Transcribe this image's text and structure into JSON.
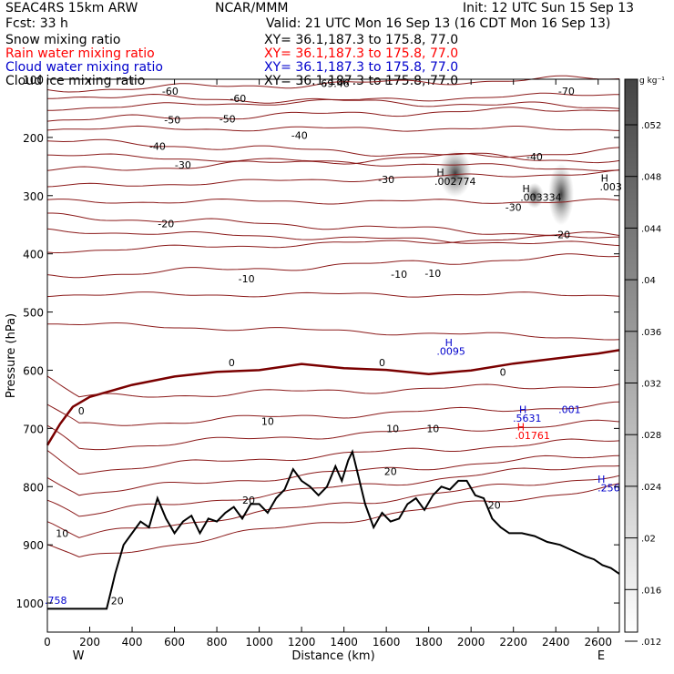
{
  "header": {
    "model": "SEAC4RS 15km ARW",
    "org": "NCAR/MMM",
    "init": "Init: 12 UTC Sun 15 Sep 13",
    "fcst": "Fcst:    33 h",
    "valid": "Valid: 21 UTC Mon 16 Sep 13 (16 CDT Mon 16 Sep 13)",
    "fields": [
      {
        "label": "Snow mixing ratio",
        "xy": "XY=  36.1,187.3 to 175.8, 77.0",
        "color": "#000000"
      },
      {
        "label": "Rain water mixing ratio",
        "xy": "XY=  36.1,187.3 to 175.8, 77.0",
        "color": "#ff0000"
      },
      {
        "label": "Cloud water mixing ratio",
        "xy": "XY=  36.1,187.3 to 175.8, 77.0",
        "color": "#0000cc"
      },
      {
        "label": "Cloud ice mixing ratio",
        "xy": "XY=  36.1,187.3 to 175.8, 77.0",
        "color": "#000000"
      }
    ]
  },
  "chart_data": {
    "type": "contour",
    "xlabel": "Distance (km)",
    "ylabel": "Pressure (hPa)",
    "xlim": [
      0,
      2700
    ],
    "ylim": [
      1050,
      100
    ],
    "x_ticks": [
      "0",
      "200",
      "400",
      "600",
      "800",
      "1000",
      "1200",
      "1400",
      "1600",
      "1800",
      "2000",
      "2200",
      "2400",
      "2600"
    ],
    "y_ticks": [
      "100",
      "200",
      "300",
      "400",
      "500",
      "600",
      "700",
      "800",
      "900",
      "1000"
    ],
    "x_end_labels": {
      "left": "W",
      "right": "E"
    },
    "colorbar": {
      "unit": "g kg⁻¹",
      "labels": [
        ".052",
        ".048",
        ".044",
        ".04",
        ".036",
        ".032",
        ".028",
        ".024",
        ".02",
        ".016",
        ".012"
      ]
    },
    "temperature_contours": {
      "color": "#8b1a1a",
      "levels": [
        -70,
        -60,
        -50,
        -40,
        -30,
        -20,
        -10,
        0,
        10,
        20
      ],
      "labels": [
        {
          "text": "-69.46",
          "x": 1350,
          "p": 107
        },
        {
          "text": "-70",
          "x": 2450,
          "p": 120
        },
        {
          "text": "-60",
          "x": 580,
          "p": 120
        },
        {
          "text": "-60",
          "x": 900,
          "p": 133
        },
        {
          "text": "-50",
          "x": 590,
          "p": 170
        },
        {
          "text": "-50",
          "x": 850,
          "p": 168
        },
        {
          "text": "-40",
          "x": 520,
          "p": 215
        },
        {
          "text": "-40",
          "x": 1190,
          "p": 196
        },
        {
          "text": "-40",
          "x": 2300,
          "p": 233
        },
        {
          "text": "-30",
          "x": 640,
          "p": 247
        },
        {
          "text": "-30",
          "x": 1600,
          "p": 272
        },
        {
          "text": "-30",
          "x": 2200,
          "p": 320
        },
        {
          "text": "-20",
          "x": 560,
          "p": 348
        },
        {
          "text": "-20",
          "x": 2430,
          "p": 367
        },
        {
          "text": "-10",
          "x": 940,
          "p": 443
        },
        {
          "text": "-10",
          "x": 1660,
          "p": 435
        },
        {
          "text": "-10",
          "x": 1820,
          "p": 433
        },
        {
          "text": "0",
          "x": 870,
          "p": 587
        },
        {
          "text": "0",
          "x": 1580,
          "p": 587
        },
        {
          "text": "0",
          "x": 2150,
          "p": 603
        },
        {
          "text": "0",
          "x": 160,
          "p": 670
        },
        {
          "text": "10",
          "x": 1040,
          "p": 688
        },
        {
          "text": "10",
          "x": 1630,
          "p": 700
        },
        {
          "text": "10",
          "x": 1820,
          "p": 700
        },
        {
          "text": "10",
          "x": 70,
          "p": 880
        },
        {
          "text": "20",
          "x": 1620,
          "p": 774
        },
        {
          "text": "20",
          "x": 950,
          "p": 823
        },
        {
          "text": "20",
          "x": 2110,
          "p": 832
        },
        {
          "text": "20",
          "x": 330,
          "p": 996
        }
      ]
    },
    "extrema": [
      {
        "text": "H",
        "x": 1855,
        "p": 260,
        "color": "#000000"
      },
      {
        "text": ".002774",
        "x": 1925,
        "p": 275,
        "color": "#000000"
      },
      {
        "text": "H",
        "x": 2260,
        "p": 288,
        "color": "#000000"
      },
      {
        "text": ".003334",
        "x": 2330,
        "p": 303,
        "color": "#000000"
      },
      {
        "text": "H",
        "x": 2630,
        "p": 270,
        "color": "#000000"
      },
      {
        "text": ".003",
        "x": 2660,
        "p": 285,
        "color": "#000000"
      },
      {
        "text": "H",
        "x": 1895,
        "p": 552,
        "color": "#0000cc"
      },
      {
        "text": ".0095",
        "x": 1905,
        "p": 567,
        "color": "#0000cc"
      },
      {
        "text": "H",
        "x": 2245,
        "p": 667,
        "color": "#0000cc"
      },
      {
        "text": ".5631",
        "x": 2265,
        "p": 682,
        "color": "#0000cc"
      },
      {
        "text": ".001",
        "x": 2465,
        "p": 667,
        "color": "#0000cc"
      },
      {
        "text": "H",
        "x": 2235,
        "p": 697,
        "color": "#ff0000"
      },
      {
        "text": ".01761",
        "x": 2290,
        "p": 712,
        "color": "#ff0000"
      },
      {
        "text": "H",
        "x": 2615,
        "p": 787,
        "color": "#0000cc"
      },
      {
        "text": ".256",
        "x": 2650,
        "p": 802,
        "color": "#0000cc"
      },
      {
        "text": ".758",
        "x": 40,
        "p": 995,
        "color": "#0000cc"
      }
    ],
    "terrain": [
      [
        0,
        1010
      ],
      [
        280,
        1010
      ],
      [
        300,
        980
      ],
      [
        320,
        950
      ],
      [
        360,
        900
      ],
      [
        400,
        880
      ],
      [
        440,
        860
      ],
      [
        480,
        870
      ],
      [
        520,
        820
      ],
      [
        560,
        855
      ],
      [
        600,
        880
      ],
      [
        640,
        860
      ],
      [
        680,
        850
      ],
      [
        720,
        880
      ],
      [
        760,
        855
      ],
      [
        800,
        860
      ],
      [
        840,
        845
      ],
      [
        880,
        835
      ],
      [
        920,
        855
      ],
      [
        960,
        830
      ],
      [
        1000,
        830
      ],
      [
        1040,
        845
      ],
      [
        1080,
        820
      ],
      [
        1120,
        805
      ],
      [
        1160,
        770
      ],
      [
        1200,
        790
      ],
      [
        1240,
        800
      ],
      [
        1280,
        815
      ],
      [
        1320,
        800
      ],
      [
        1360,
        765
      ],
      [
        1390,
        790
      ],
      [
        1420,
        755
      ],
      [
        1440,
        740
      ],
      [
        1460,
        770
      ],
      [
        1500,
        830
      ],
      [
        1540,
        870
      ],
      [
        1580,
        845
      ],
      [
        1620,
        860
      ],
      [
        1660,
        855
      ],
      [
        1700,
        830
      ],
      [
        1740,
        820
      ],
      [
        1780,
        840
      ],
      [
        1820,
        815
      ],
      [
        1860,
        800
      ],
      [
        1900,
        805
      ],
      [
        1940,
        790
      ],
      [
        1980,
        790
      ],
      [
        2020,
        815
      ],
      [
        2060,
        820
      ],
      [
        2100,
        855
      ],
      [
        2140,
        870
      ],
      [
        2180,
        880
      ],
      [
        2240,
        880
      ],
      [
        2300,
        885
      ],
      [
        2360,
        895
      ],
      [
        2420,
        900
      ],
      [
        2480,
        910
      ],
      [
        2540,
        920
      ],
      [
        2580,
        925
      ],
      [
        2620,
        935
      ],
      [
        2660,
        940
      ],
      [
        2700,
        950
      ]
    ]
  }
}
